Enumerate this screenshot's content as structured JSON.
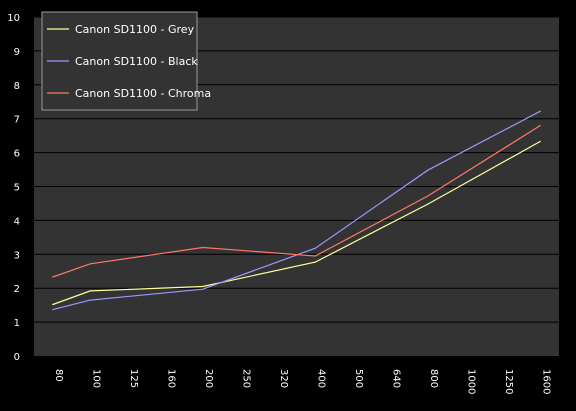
{
  "chart_data": {
    "type": "line",
    "title": "",
    "xlabel": "",
    "ylabel": "",
    "categories": [
      "80",
      "100",
      "125",
      "160",
      "200",
      "250",
      "320",
      "400",
      "500",
      "640",
      "800",
      "1000",
      "1250",
      "1600"
    ],
    "ylim": [
      0,
      10
    ],
    "yticks": [
      "0",
      "1",
      "2",
      "3",
      "4",
      "5",
      "6",
      "7",
      "8",
      "9",
      "10"
    ],
    "grid": true,
    "legend_position": "top-left",
    "series": [
      {
        "name": "Canon SD1100 - Grey",
        "color": "#ffff99",
        "points": [
          [
            0,
            1.52
          ],
          [
            1,
            1.92
          ],
          [
            4,
            2.05
          ],
          [
            7,
            2.77
          ],
          [
            10,
            4.48
          ],
          [
            13,
            6.33
          ]
        ]
      },
      {
        "name": "Canon SD1100 - Black",
        "color": "#9999ff",
        "points": [
          [
            0,
            1.37
          ],
          [
            1,
            1.65
          ],
          [
            4,
            1.97
          ],
          [
            7,
            3.18
          ],
          [
            10,
            5.48
          ],
          [
            13,
            7.22
          ]
        ]
      },
      {
        "name": "Canon SD1100 - Chroma",
        "color": "#ff7766",
        "points": [
          [
            0,
            2.33
          ],
          [
            1,
            2.72
          ],
          [
            4,
            3.2
          ],
          [
            7,
            2.95
          ],
          [
            10,
            4.72
          ],
          [
            13,
            6.8
          ]
        ]
      }
    ]
  },
  "colors": {
    "background": "#000000",
    "plot_area": "#333333",
    "gridline": "#000000",
    "legend_bg": "#333333",
    "legend_border": "#9a9a9a"
  }
}
